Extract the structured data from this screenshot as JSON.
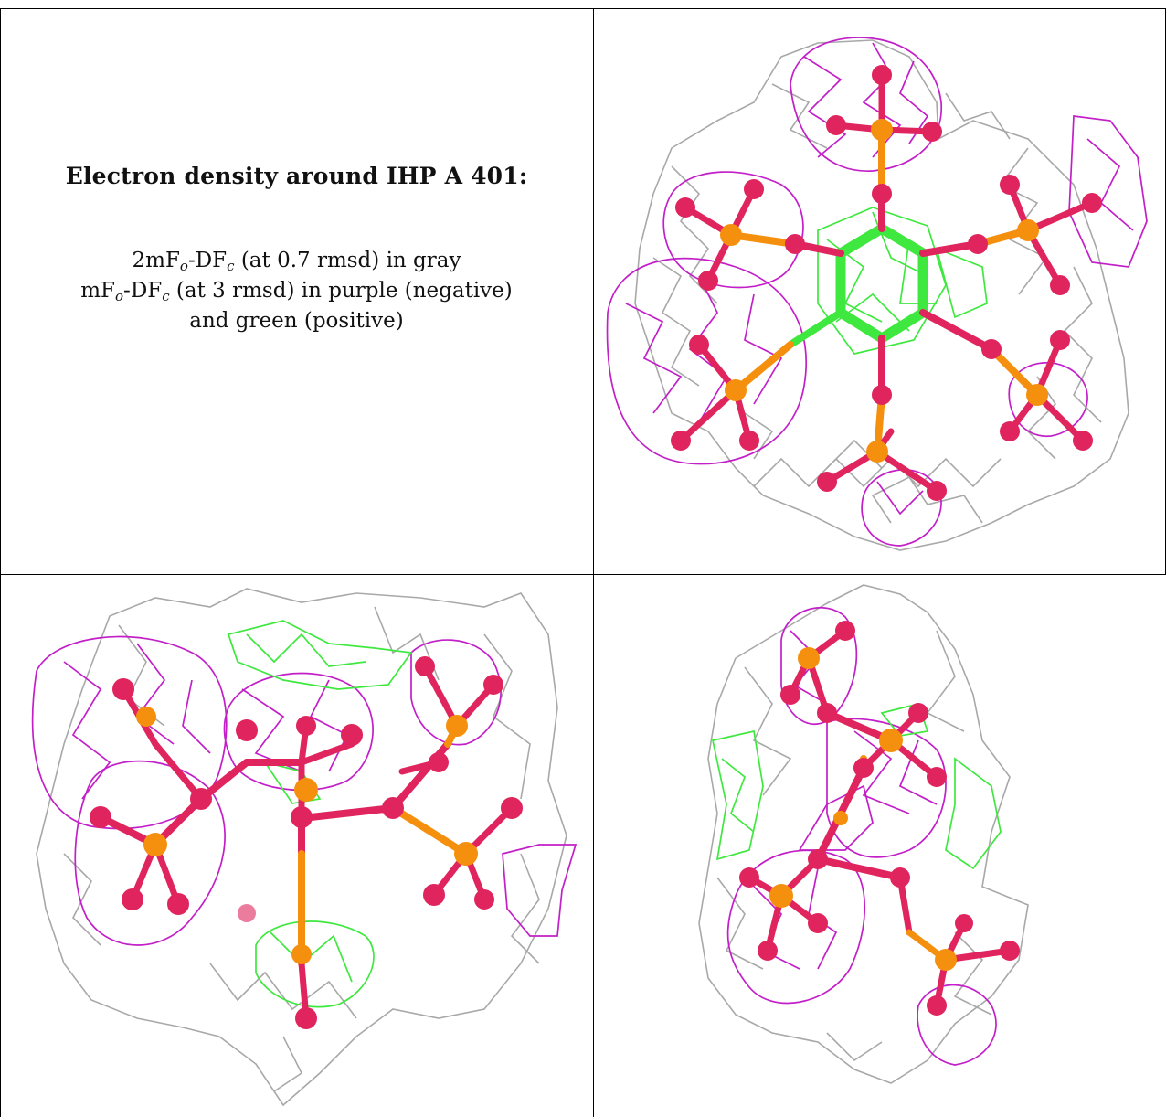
{
  "caption": {
    "title": "Electron density around IHP A 401:",
    "line1": {
      "prefix": "2mF",
      "sub_o": "o",
      "mid": "-DF",
      "sub_c": "c",
      "suffix": " (at 0.7 rmsd) in gray"
    },
    "line2": {
      "prefix": "mF",
      "sub_o": "o",
      "mid": "-DF",
      "sub_c": "c",
      "suffix": " (at 3 rmsd) in purple (negative)"
    },
    "line3": "and green (positive)"
  },
  "colors": {
    "gray_mesh": "#a8a8a8",
    "purple_mesh": "#c21fc8",
    "green_mesh": "#3ee83e",
    "oxygen": "#e0245e",
    "phosphorus": "#f5900f",
    "carbon": "#3ee83e"
  },
  "panels": [
    {
      "view": "top-right"
    },
    {
      "view": "bottom-left"
    },
    {
      "view": "bottom-right"
    }
  ]
}
